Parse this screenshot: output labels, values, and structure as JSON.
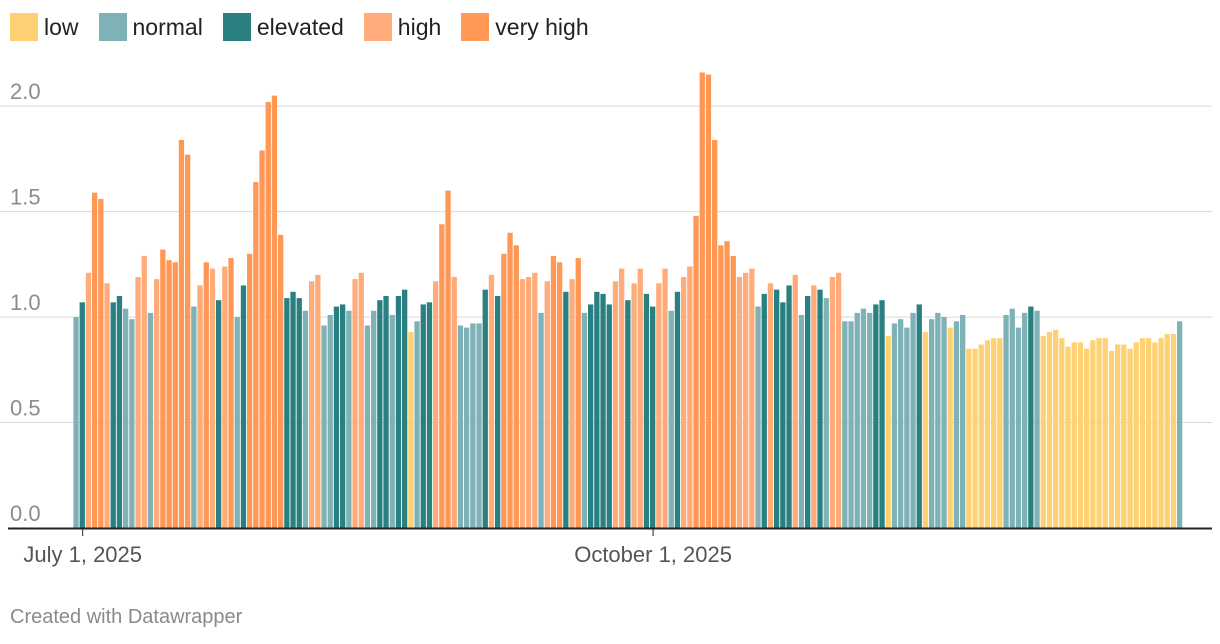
{
  "chart_data": {
    "type": "bar",
    "title": "",
    "xlabel": "",
    "ylabel": "",
    "ylim": [
      0,
      2.2
    ],
    "grid": true,
    "legend_position": "top-left",
    "y_ticks": [
      "0.0",
      "0.5",
      "1.0",
      "1.5",
      "2.0"
    ],
    "x_ticks": [
      {
        "date": "2025-07-01",
        "label": "July 1, 2025"
      },
      {
        "date": "2025-10-01",
        "label": "October 1, 2025"
      }
    ],
    "categories": [
      {
        "key": "low",
        "label": "low",
        "color": "#ffd175"
      },
      {
        "key": "normal",
        "label": "normal",
        "color": "#7eb2b6"
      },
      {
        "key": "elevated",
        "label": "elevated",
        "color": "#2a7f80"
      },
      {
        "key": "high",
        "label": "high",
        "color": "#ffac7a"
      },
      {
        "key": "very_high",
        "label": "very high",
        "color": "#ff9755"
      }
    ],
    "start_date": "2025-06-30",
    "series": [
      {
        "date": "2025-06-30",
        "value": 1.0,
        "category": "normal"
      },
      {
        "date": "2025-07-01",
        "value": 1.07,
        "category": "elevated"
      },
      {
        "date": "2025-07-02",
        "value": 1.21,
        "category": "high"
      },
      {
        "date": "2025-07-03",
        "value": 1.59,
        "category": "very_high"
      },
      {
        "date": "2025-07-04",
        "value": 1.56,
        "category": "very_high"
      },
      {
        "date": "2025-07-05",
        "value": 1.16,
        "category": "high"
      },
      {
        "date": "2025-07-06",
        "value": 1.07,
        "category": "elevated"
      },
      {
        "date": "2025-07-07",
        "value": 1.1,
        "category": "elevated"
      },
      {
        "date": "2025-07-08",
        "value": 1.04,
        "category": "normal"
      },
      {
        "date": "2025-07-09",
        "value": 0.99,
        "category": "normal"
      },
      {
        "date": "2025-07-10",
        "value": 1.19,
        "category": "high"
      },
      {
        "date": "2025-07-11",
        "value": 1.29,
        "category": "high"
      },
      {
        "date": "2025-07-12",
        "value": 1.02,
        "category": "normal"
      },
      {
        "date": "2025-07-13",
        "value": 1.18,
        "category": "high"
      },
      {
        "date": "2025-07-14",
        "value": 1.32,
        "category": "very_high"
      },
      {
        "date": "2025-07-15",
        "value": 1.27,
        "category": "very_high"
      },
      {
        "date": "2025-07-16",
        "value": 1.26,
        "category": "very_high"
      },
      {
        "date": "2025-07-17",
        "value": 1.84,
        "category": "very_high"
      },
      {
        "date": "2025-07-18",
        "value": 1.77,
        "category": "very_high"
      },
      {
        "date": "2025-07-19",
        "value": 1.05,
        "category": "normal"
      },
      {
        "date": "2025-07-20",
        "value": 1.15,
        "category": "high"
      },
      {
        "date": "2025-07-21",
        "value": 1.26,
        "category": "very_high"
      },
      {
        "date": "2025-07-22",
        "value": 1.23,
        "category": "high"
      },
      {
        "date": "2025-07-23",
        "value": 1.08,
        "category": "elevated"
      },
      {
        "date": "2025-07-24",
        "value": 1.24,
        "category": "high"
      },
      {
        "date": "2025-07-25",
        "value": 1.28,
        "category": "very_high"
      },
      {
        "date": "2025-07-26",
        "value": 1.0,
        "category": "normal"
      },
      {
        "date": "2025-07-27",
        "value": 1.15,
        "category": "elevated"
      },
      {
        "date": "2025-07-28",
        "value": 1.3,
        "category": "very_high"
      },
      {
        "date": "2025-07-29",
        "value": 1.64,
        "category": "very_high"
      },
      {
        "date": "2025-07-30",
        "value": 1.79,
        "category": "very_high"
      },
      {
        "date": "2025-07-31",
        "value": 2.02,
        "category": "very_high"
      },
      {
        "date": "2025-08-01",
        "value": 2.05,
        "category": "very_high"
      },
      {
        "date": "2025-08-02",
        "value": 1.39,
        "category": "very_high"
      },
      {
        "date": "2025-08-03",
        "value": 1.09,
        "category": "elevated"
      },
      {
        "date": "2025-08-04",
        "value": 1.12,
        "category": "elevated"
      },
      {
        "date": "2025-08-05",
        "value": 1.09,
        "category": "elevated"
      },
      {
        "date": "2025-08-06",
        "value": 1.03,
        "category": "normal"
      },
      {
        "date": "2025-08-07",
        "value": 1.17,
        "category": "high"
      },
      {
        "date": "2025-08-08",
        "value": 1.2,
        "category": "high"
      },
      {
        "date": "2025-08-09",
        "value": 0.96,
        "category": "normal"
      },
      {
        "date": "2025-08-10",
        "value": 1.01,
        "category": "normal"
      },
      {
        "date": "2025-08-11",
        "value": 1.05,
        "category": "elevated"
      },
      {
        "date": "2025-08-12",
        "value": 1.06,
        "category": "elevated"
      },
      {
        "date": "2025-08-13",
        "value": 1.03,
        "category": "normal"
      },
      {
        "date": "2025-08-14",
        "value": 1.18,
        "category": "high"
      },
      {
        "date": "2025-08-15",
        "value": 1.21,
        "category": "high"
      },
      {
        "date": "2025-08-16",
        "value": 0.96,
        "category": "normal"
      },
      {
        "date": "2025-08-17",
        "value": 1.03,
        "category": "normal"
      },
      {
        "date": "2025-08-18",
        "value": 1.08,
        "category": "elevated"
      },
      {
        "date": "2025-08-19",
        "value": 1.1,
        "category": "elevated"
      },
      {
        "date": "2025-08-20",
        "value": 1.01,
        "category": "normal"
      },
      {
        "date": "2025-08-21",
        "value": 1.1,
        "category": "elevated"
      },
      {
        "date": "2025-08-22",
        "value": 1.13,
        "category": "elevated"
      },
      {
        "date": "2025-08-23",
        "value": 0.93,
        "category": "low"
      },
      {
        "date": "2025-08-24",
        "value": 0.98,
        "category": "normal"
      },
      {
        "date": "2025-08-25",
        "value": 1.06,
        "category": "elevated"
      },
      {
        "date": "2025-08-26",
        "value": 1.07,
        "category": "elevated"
      },
      {
        "date": "2025-08-27",
        "value": 1.17,
        "category": "high"
      },
      {
        "date": "2025-08-28",
        "value": 1.44,
        "category": "very_high"
      },
      {
        "date": "2025-08-29",
        "value": 1.6,
        "category": "very_high"
      },
      {
        "date": "2025-08-30",
        "value": 1.19,
        "category": "high"
      },
      {
        "date": "2025-08-31",
        "value": 0.96,
        "category": "normal"
      },
      {
        "date": "2025-09-01",
        "value": 0.95,
        "category": "normal"
      },
      {
        "date": "2025-09-02",
        "value": 0.97,
        "category": "normal"
      },
      {
        "date": "2025-09-03",
        "value": 0.97,
        "category": "normal"
      },
      {
        "date": "2025-09-04",
        "value": 1.13,
        "category": "elevated"
      },
      {
        "date": "2025-09-05",
        "value": 1.2,
        "category": "high"
      },
      {
        "date": "2025-09-06",
        "value": 1.1,
        "category": "elevated"
      },
      {
        "date": "2025-09-07",
        "value": 1.3,
        "category": "very_high"
      },
      {
        "date": "2025-09-08",
        "value": 1.4,
        "category": "very_high"
      },
      {
        "date": "2025-09-09",
        "value": 1.34,
        "category": "very_high"
      },
      {
        "date": "2025-09-10",
        "value": 1.18,
        "category": "high"
      },
      {
        "date": "2025-09-11",
        "value": 1.19,
        "category": "high"
      },
      {
        "date": "2025-09-12",
        "value": 1.21,
        "category": "high"
      },
      {
        "date": "2025-09-13",
        "value": 1.02,
        "category": "normal"
      },
      {
        "date": "2025-09-14",
        "value": 1.17,
        "category": "high"
      },
      {
        "date": "2025-09-15",
        "value": 1.29,
        "category": "very_high"
      },
      {
        "date": "2025-09-16",
        "value": 1.26,
        "category": "very_high"
      },
      {
        "date": "2025-09-17",
        "value": 1.12,
        "category": "elevated"
      },
      {
        "date": "2025-09-18",
        "value": 1.18,
        "category": "high"
      },
      {
        "date": "2025-09-19",
        "value": 1.28,
        "category": "very_high"
      },
      {
        "date": "2025-09-20",
        "value": 1.02,
        "category": "normal"
      },
      {
        "date": "2025-09-21",
        "value": 1.06,
        "category": "elevated"
      },
      {
        "date": "2025-09-22",
        "value": 1.12,
        "category": "elevated"
      },
      {
        "date": "2025-09-23",
        "value": 1.11,
        "category": "elevated"
      },
      {
        "date": "2025-09-24",
        "value": 1.06,
        "category": "elevated"
      },
      {
        "date": "2025-09-25",
        "value": 1.17,
        "category": "high"
      },
      {
        "date": "2025-09-26",
        "value": 1.23,
        "category": "high"
      },
      {
        "date": "2025-09-27",
        "value": 1.08,
        "category": "elevated"
      },
      {
        "date": "2025-09-28",
        "value": 1.16,
        "category": "high"
      },
      {
        "date": "2025-09-29",
        "value": 1.23,
        "category": "high"
      },
      {
        "date": "2025-09-30",
        "value": 1.11,
        "category": "elevated"
      },
      {
        "date": "2025-10-01",
        "value": 1.05,
        "category": "elevated"
      },
      {
        "date": "2025-10-02",
        "value": 1.16,
        "category": "high"
      },
      {
        "date": "2025-10-03",
        "value": 1.23,
        "category": "high"
      },
      {
        "date": "2025-10-04",
        "value": 1.03,
        "category": "normal"
      },
      {
        "date": "2025-10-05",
        "value": 1.12,
        "category": "elevated"
      },
      {
        "date": "2025-10-06",
        "value": 1.19,
        "category": "high"
      },
      {
        "date": "2025-10-07",
        "value": 1.24,
        "category": "high"
      },
      {
        "date": "2025-10-08",
        "value": 1.48,
        "category": "very_high"
      },
      {
        "date": "2025-10-09",
        "value": 2.16,
        "category": "very_high"
      },
      {
        "date": "2025-10-10",
        "value": 2.15,
        "category": "very_high"
      },
      {
        "date": "2025-10-11",
        "value": 1.84,
        "category": "very_high"
      },
      {
        "date": "2025-10-12",
        "value": 1.34,
        "category": "very_high"
      },
      {
        "date": "2025-10-13",
        "value": 1.36,
        "category": "very_high"
      },
      {
        "date": "2025-10-14",
        "value": 1.29,
        "category": "very_high"
      },
      {
        "date": "2025-10-15",
        "value": 1.19,
        "category": "high"
      },
      {
        "date": "2025-10-16",
        "value": 1.21,
        "category": "high"
      },
      {
        "date": "2025-10-17",
        "value": 1.23,
        "category": "high"
      },
      {
        "date": "2025-10-18",
        "value": 1.05,
        "category": "normal"
      },
      {
        "date": "2025-10-19",
        "value": 1.11,
        "category": "elevated"
      },
      {
        "date": "2025-10-20",
        "value": 1.16,
        "category": "high"
      },
      {
        "date": "2025-10-21",
        "value": 1.13,
        "category": "elevated"
      },
      {
        "date": "2025-10-22",
        "value": 1.07,
        "category": "elevated"
      },
      {
        "date": "2025-10-23",
        "value": 1.15,
        "category": "elevated"
      },
      {
        "date": "2025-10-24",
        "value": 1.2,
        "category": "high"
      },
      {
        "date": "2025-10-25",
        "value": 1.01,
        "category": "normal"
      },
      {
        "date": "2025-10-26",
        "value": 1.1,
        "category": "elevated"
      },
      {
        "date": "2025-10-27",
        "value": 1.15,
        "category": "high"
      },
      {
        "date": "2025-10-28",
        "value": 1.13,
        "category": "elevated"
      },
      {
        "date": "2025-10-29",
        "value": 1.09,
        "category": "normal"
      },
      {
        "date": "2025-10-30",
        "value": 1.19,
        "category": "high"
      },
      {
        "date": "2025-10-31",
        "value": 1.21,
        "category": "high"
      },
      {
        "date": "2025-11-01",
        "value": 0.98,
        "category": "normal"
      },
      {
        "date": "2025-11-02",
        "value": 0.98,
        "category": "normal"
      },
      {
        "date": "2025-11-03",
        "value": 1.02,
        "category": "normal"
      },
      {
        "date": "2025-11-04",
        "value": 1.04,
        "category": "normal"
      },
      {
        "date": "2025-11-05",
        "value": 1.02,
        "category": "normal"
      },
      {
        "date": "2025-11-06",
        "value": 1.06,
        "category": "elevated"
      },
      {
        "date": "2025-11-07",
        "value": 1.08,
        "category": "elevated"
      },
      {
        "date": "2025-11-08",
        "value": 0.91,
        "category": "low"
      },
      {
        "date": "2025-11-09",
        "value": 0.97,
        "category": "normal"
      },
      {
        "date": "2025-11-10",
        "value": 0.99,
        "category": "normal"
      },
      {
        "date": "2025-11-11",
        "value": 0.95,
        "category": "normal"
      },
      {
        "date": "2025-11-12",
        "value": 1.02,
        "category": "normal"
      },
      {
        "date": "2025-11-13",
        "value": 1.06,
        "category": "elevated"
      },
      {
        "date": "2025-11-14",
        "value": 0.93,
        "category": "low"
      },
      {
        "date": "2025-11-15",
        "value": 0.99,
        "category": "normal"
      },
      {
        "date": "2025-11-16",
        "value": 1.02,
        "category": "normal"
      },
      {
        "date": "2025-11-17",
        "value": 1.0,
        "category": "normal"
      },
      {
        "date": "2025-11-18",
        "value": 0.95,
        "category": "low"
      },
      {
        "date": "2025-11-19",
        "value": 0.98,
        "category": "normal"
      },
      {
        "date": "2025-11-20",
        "value": 1.01,
        "category": "normal"
      },
      {
        "date": "2025-11-21",
        "value": 0.85,
        "category": "low"
      },
      {
        "date": "2025-11-22",
        "value": 0.85,
        "category": "low"
      },
      {
        "date": "2025-11-23",
        "value": 0.87,
        "category": "low"
      },
      {
        "date": "2025-11-24",
        "value": 0.89,
        "category": "low"
      },
      {
        "date": "2025-11-25",
        "value": 0.9,
        "category": "low"
      },
      {
        "date": "2025-11-26",
        "value": 0.9,
        "category": "low"
      },
      {
        "date": "2025-11-27",
        "value": 1.01,
        "category": "normal"
      },
      {
        "date": "2025-11-28",
        "value": 1.04,
        "category": "normal"
      },
      {
        "date": "2025-11-29",
        "value": 0.95,
        "category": "normal"
      },
      {
        "date": "2025-11-30",
        "value": 1.02,
        "category": "normal"
      },
      {
        "date": "2025-12-01",
        "value": 1.05,
        "category": "elevated"
      },
      {
        "date": "2025-12-02",
        "value": 1.03,
        "category": "normal"
      },
      {
        "date": "2025-12-03",
        "value": 0.91,
        "category": "low"
      },
      {
        "date": "2025-12-04",
        "value": 0.93,
        "category": "low"
      },
      {
        "date": "2025-12-05",
        "value": 0.94,
        "category": "low"
      },
      {
        "date": "2025-12-06",
        "value": 0.9,
        "category": "low"
      },
      {
        "date": "2025-12-07",
        "value": 0.86,
        "category": "low"
      },
      {
        "date": "2025-12-08",
        "value": 0.88,
        "category": "low"
      },
      {
        "date": "2025-12-09",
        "value": 0.88,
        "category": "low"
      },
      {
        "date": "2025-12-10",
        "value": 0.85,
        "category": "low"
      },
      {
        "date": "2025-12-11",
        "value": 0.89,
        "category": "low"
      },
      {
        "date": "2025-12-12",
        "value": 0.9,
        "category": "low"
      },
      {
        "date": "2025-12-13",
        "value": 0.9,
        "category": "low"
      },
      {
        "date": "2025-12-14",
        "value": 0.84,
        "category": "low"
      },
      {
        "date": "2025-12-15",
        "value": 0.87,
        "category": "low"
      },
      {
        "date": "2025-12-16",
        "value": 0.87,
        "category": "low"
      },
      {
        "date": "2025-12-17",
        "value": 0.85,
        "category": "low"
      },
      {
        "date": "2025-12-18",
        "value": 0.88,
        "category": "low"
      },
      {
        "date": "2025-12-19",
        "value": 0.9,
        "category": "low"
      },
      {
        "date": "2025-12-20",
        "value": 0.9,
        "category": "low"
      },
      {
        "date": "2025-12-21",
        "value": 0.88,
        "category": "low"
      },
      {
        "date": "2025-12-22",
        "value": 0.9,
        "category": "low"
      },
      {
        "date": "2025-12-23",
        "value": 0.92,
        "category": "low"
      },
      {
        "date": "2025-12-24",
        "value": 0.92,
        "category": "low"
      },
      {
        "date": "2025-12-25",
        "value": 0.98,
        "category": "normal"
      }
    ]
  },
  "footer": {
    "credit": "Created with Datawrapper"
  }
}
